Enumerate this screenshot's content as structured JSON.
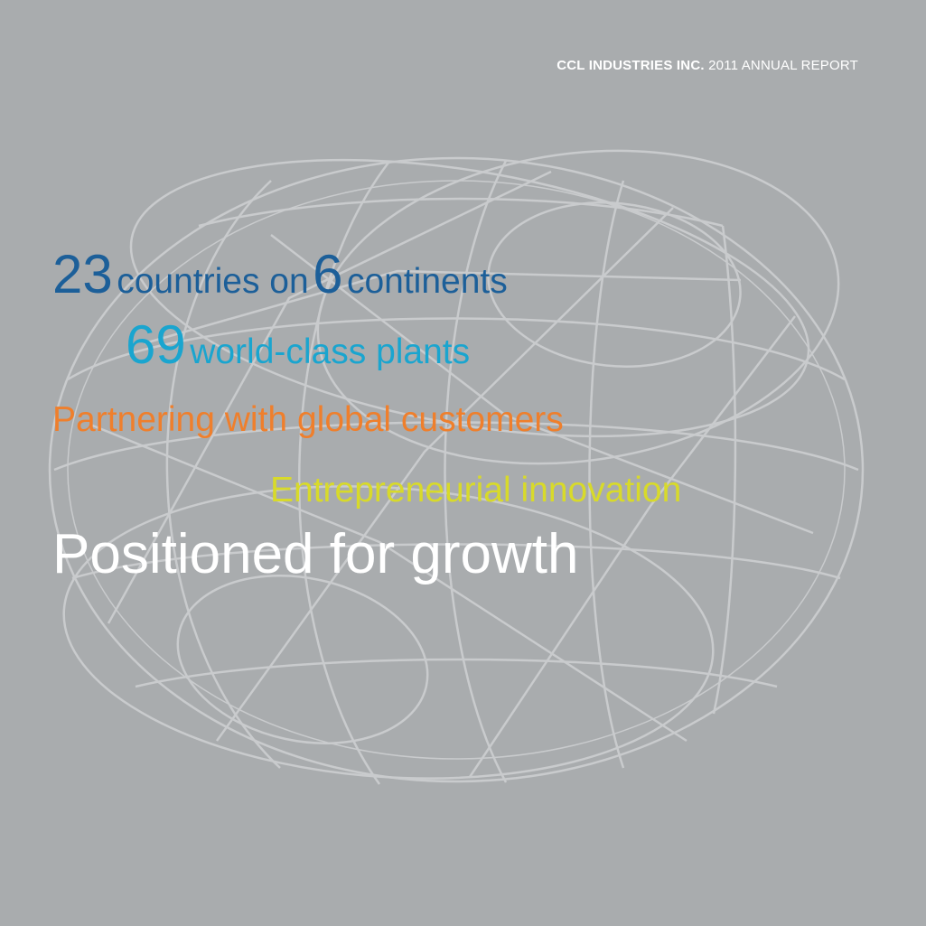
{
  "header": {
    "company": "CCL INDUSTRIES INC.",
    "report": "2011 ANNUAL REPORT"
  },
  "headline": {
    "line1": {
      "num1": "23",
      "text1": "countries on",
      "num2": "6",
      "text2": "continents"
    },
    "line2": {
      "num": "69",
      "text": "world-class plants"
    },
    "line3": "Partnering with global customers",
    "line4": "Entrepreneurial innovation",
    "line5": "Positioned for growth"
  },
  "colors": {
    "background": "#a9acae",
    "globe_lines": "#c9cbcd",
    "blue": "#1c5f99",
    "cyan": "#1aa5cf",
    "orange": "#ef7f2c",
    "yellow": "#d8da2a",
    "white": "#ffffff"
  }
}
